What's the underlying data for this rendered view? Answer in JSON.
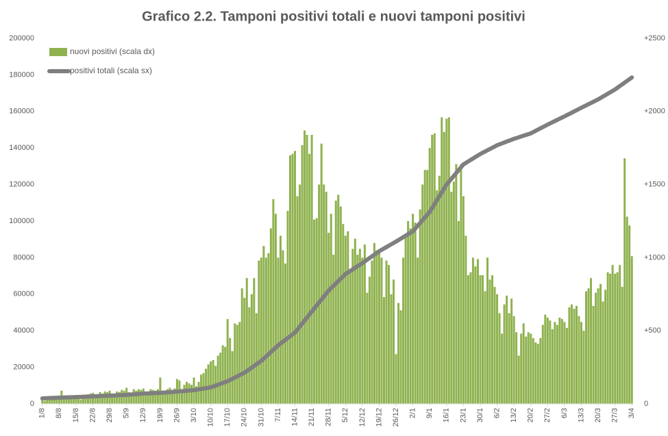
{
  "chart_data": {
    "type": "combo",
    "title": "Grafico 2.2. Tamponi positivi totali e nuovi tamponi positivi",
    "categories": [
      "1/8",
      null,
      null,
      null,
      null,
      null,
      null,
      "8/8",
      null,
      null,
      null,
      null,
      null,
      null,
      "15/8",
      null,
      null,
      null,
      null,
      null,
      null,
      "22/8",
      null,
      null,
      null,
      null,
      null,
      null,
      "29/8",
      null,
      null,
      null,
      null,
      null,
      null,
      "5/9",
      null,
      null,
      null,
      null,
      null,
      null,
      "12/9",
      null,
      null,
      null,
      null,
      null,
      null,
      "19/9",
      null,
      null,
      null,
      null,
      null,
      null,
      "26/9",
      null,
      null,
      null,
      null,
      null,
      null,
      "3/10",
      null,
      null,
      null,
      null,
      null,
      null,
      "10/10",
      null,
      null,
      null,
      null,
      null,
      null,
      "17/10",
      null,
      null,
      null,
      null,
      null,
      null,
      "24/10",
      null,
      null,
      null,
      null,
      null,
      null,
      "31/10",
      null,
      null,
      null,
      null,
      null,
      null,
      "7/11",
      null,
      null,
      null,
      null,
      null,
      null,
      "14/11",
      null,
      null,
      null,
      null,
      null,
      null,
      "21/11",
      null,
      null,
      null,
      null,
      null,
      null,
      "28/11",
      null,
      null,
      null,
      null,
      null,
      null,
      "5/12",
      null,
      null,
      null,
      null,
      null,
      null,
      "12/12",
      null,
      null,
      null,
      null,
      null,
      null,
      "19/12",
      null,
      null,
      null,
      null,
      null,
      null,
      "26/12",
      null,
      null,
      null,
      null,
      null,
      null,
      "2/1",
      null,
      null,
      null,
      null,
      null,
      null,
      "9/1",
      null,
      null,
      null,
      null,
      null,
      null,
      "16/1",
      null,
      null,
      null,
      null,
      null,
      null,
      "23/1",
      null,
      null,
      null,
      null,
      null,
      null,
      "30/1",
      null,
      null,
      null,
      null,
      null,
      null,
      "6/2",
      null,
      null,
      null,
      null,
      null,
      null,
      "13/2",
      null,
      null,
      null,
      null,
      null,
      null,
      "20/2",
      null,
      null,
      null,
      null,
      null,
      null,
      "27/2",
      null,
      null,
      null,
      null,
      null,
      null,
      "6/3",
      null,
      null,
      null,
      null,
      null,
      null,
      "13/3",
      null,
      null,
      null,
      null,
      null,
      null,
      "20/3",
      null,
      null,
      null,
      null,
      null,
      null,
      "27/3",
      null,
      null,
      null,
      null,
      null,
      null,
      "3/4"
    ],
    "series": [
      {
        "name": "nuovi positivi (scala dx)",
        "type": "bar",
        "axis": "y2",
        "color": "#8fb24f",
        "values": [
          30,
          20,
          25,
          40,
          35,
          30,
          35,
          45,
          90,
          40,
          50,
          45,
          50,
          55,
          60,
          40,
          30,
          55,
          60,
          65,
          70,
          75,
          50,
          40,
          80,
          70,
          85,
          80,
          90,
          70,
          50,
          85,
          80,
          95,
          90,
          110,
          80,
          60,
          100,
          90,
          100,
          95,
          105,
          80,
          60,
          100,
          95,
          90,
          100,
          180,
          90,
          70,
          100,
          110,
          95,
          105,
          170,
          160,
          90,
          130,
          150,
          140,
          130,
          180,
          120,
          150,
          200,
          210,
          240,
          270,
          290,
          300,
          260,
          330,
          350,
          400,
          390,
          580,
          450,
          360,
          550,
          540,
          560,
          790,
          725,
          860,
          660,
          750,
          860,
          620,
          980,
          1000,
          1080,
          1000,
          1030,
          1200,
          1400,
          1300,
          1000,
          1150,
          1050,
          960,
          1320,
          1700,
          1710,
          1730,
          1420,
          1500,
          1770,
          1870,
          1840,
          1710,
          1840,
          1260,
          1270,
          1500,
          1780,
          1500,
          1450,
          1170,
          1300,
          1020,
          1390,
          1430,
          1350,
          1230,
          1150,
          1180,
          900,
          1060,
          1130,
          1020,
          1060,
          1000,
          1090,
          760,
          870,
          980,
          1100,
          1050,
          1050,
          1000,
          730,
          980,
          950,
          750,
          850,
          340,
          690,
          640,
          1000,
          1150,
          1250,
          1200,
          1300,
          1240,
          1000,
          1330,
          1500,
          1600,
          1600,
          1750,
          1840,
          1850,
          1460,
          1560,
          1960,
          1860,
          1950,
          1960,
          1450,
          1520,
          1640,
          1250,
          1640,
          1420,
          1150,
          880,
          900,
          1000,
          940,
          990,
          880,
          880,
          770,
          1000,
          850,
          880,
          800,
          750,
          620,
          480,
          680,
          740,
          620,
          720,
          600,
          490,
          330,
          480,
          550,
          460,
          490,
          480,
          450,
          420,
          410,
          450,
          540,
          610,
          590,
          570,
          510,
          560,
          540,
          590,
          580,
          560,
          520,
          660,
          680,
          650,
          670,
          600,
          560,
          500,
          770,
          790,
          860,
          670,
          760,
          790,
          820,
          700,
          780,
          900,
          890,
          950,
          890,
          900,
          950,
          800,
          1680,
          1280,
          1220,
          1010
        ]
      },
      {
        "name": "positivi totali (scala sx)",
        "type": "line",
        "color": "#7f7f7f",
        "values": [
          3000,
          3060,
          3110,
          3170,
          3230,
          3290,
          3340,
          3400,
          3440,
          3490,
          3530,
          3570,
          3610,
          3660,
          3700,
          3760,
          3810,
          3870,
          3930,
          3990,
          4040,
          4100,
          4160,
          4210,
          4270,
          4330,
          4390,
          4440,
          4500,
          4560,
          4610,
          4670,
          4730,
          4790,
          4840,
          4900,
          5000,
          5100,
          5200,
          5300,
          5400,
          5500,
          5600,
          5660,
          5710,
          5770,
          5830,
          5890,
          5940,
          6000,
          6100,
          6200,
          6300,
          6400,
          6500,
          6600,
          6700,
          6810,
          6930,
          7040,
          7160,
          7270,
          7390,
          7500,
          7710,
          7930,
          8140,
          8360,
          8570,
          8790,
          9000,
          9490,
          9970,
          10460,
          10940,
          11430,
          11910,
          12400,
          13060,
          13710,
          14370,
          15030,
          15690,
          16340,
          17000,
          17930,
          18860,
          19790,
          20710,
          21640,
          22570,
          23500,
          24710,
          25930,
          27140,
          28360,
          29570,
          30790,
          32000,
          33000,
          34000,
          35000,
          36000,
          37000,
          38000,
          39000,
          40640,
          42290,
          43930,
          45570,
          47210,
          48860,
          50500,
          52140,
          53790,
          55430,
          57070,
          58710,
          60360,
          62000,
          63290,
          64570,
          65860,
          67140,
          68430,
          69710,
          71000,
          71860,
          72710,
          73570,
          74430,
          75290,
          76140,
          77000,
          77930,
          78860,
          79790,
          80710,
          81640,
          82570,
          83500,
          84260,
          85010,
          85770,
          86530,
          87290,
          88040,
          88800,
          89600,
          90400,
          91200,
          92000,
          92800,
          93600,
          94400,
          95910,
          97430,
          98940,
          100460,
          101970,
          103490,
          105000,
          107140,
          109290,
          111430,
          113570,
          115710,
          117860,
          120000,
          121570,
          123140,
          124710,
          126290,
          127860,
          129430,
          131000,
          131810,
          132630,
          133440,
          134260,
          135070,
          135890,
          136700,
          137390,
          138070,
          138760,
          139440,
          140130,
          140810,
          141500,
          142000,
          142500,
          143000,
          143500,
          144000,
          144500,
          145000,
          145430,
          145860,
          146290,
          146710,
          147140,
          147570,
          148000,
          148690,
          149370,
          150060,
          150740,
          151430,
          152110,
          152800,
          153440,
          154090,
          154730,
          155370,
          156010,
          156660,
          157300,
          157970,
          158640,
          159310,
          159990,
          160660,
          161330,
          162000,
          162660,
          163310,
          163970,
          164630,
          165290,
          165940,
          166600,
          167370,
          168140,
          168910,
          169690,
          170460,
          171230,
          172000,
          172940,
          173890,
          174830,
          175770,
          176710,
          177660,
          178600
        ]
      }
    ],
    "ylim": [
      0,
      200000
    ],
    "yticks": [
      0,
      20000,
      40000,
      60000,
      80000,
      100000,
      120000,
      140000,
      160000,
      180000,
      200000
    ],
    "y2lim": [
      0,
      2500
    ],
    "y2ticks": [
      0,
      {
        "value": 500,
        "label": "+500"
      },
      {
        "value": 1000,
        "label": "+1000"
      },
      {
        "value": 1500,
        "label": "+1500"
      },
      {
        "value": 2000,
        "label": "+2000"
      },
      {
        "value": 2500,
        "label": "+2500"
      }
    ],
    "grid": false
  }
}
